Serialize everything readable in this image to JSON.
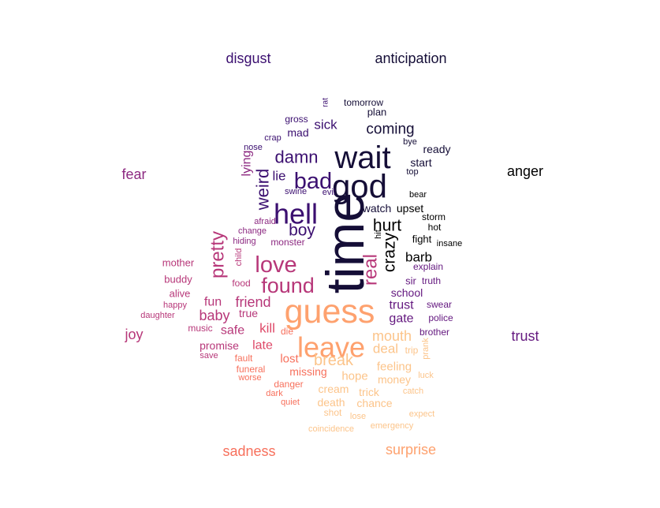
{
  "palette": {
    "black": "#000000",
    "dark_navy": "#150e37",
    "indigo": "#3b0f70",
    "purple": "#651a80",
    "magenta_purple": "#8c2981",
    "magenta": "#b73779",
    "pink": "#de4968",
    "salmon": "#f7705c",
    "peach": "#fea16e",
    "light_peach": "#fcc48a"
  },
  "categories": [
    {
      "label": "disgust",
      "color": "indigo"
    },
    {
      "label": "anticipation",
      "color": "dark_navy"
    },
    {
      "label": "fear",
      "color": "magenta_purple"
    },
    {
      "label": "anger",
      "color": "black"
    },
    {
      "label": "joy",
      "color": "magenta"
    },
    {
      "label": "trust",
      "color": "purple"
    },
    {
      "label": "sadness",
      "color": "salmon"
    },
    {
      "label": "surprise",
      "color": "peach"
    }
  ],
  "words": [
    {
      "text": "time",
      "color": "dark_navy",
      "weight": 10
    },
    {
      "text": "wait",
      "color": "dark_navy",
      "weight": 8.2
    },
    {
      "text": "god",
      "color": "dark_navy",
      "weight": 8.2
    },
    {
      "text": "guess",
      "color": "peach",
      "weight": 8.2
    },
    {
      "text": "leave",
      "color": "peach",
      "weight": 7.6
    },
    {
      "text": "hell",
      "color": "indigo",
      "weight": 6.6
    },
    {
      "text": "bad",
      "color": "indigo",
      "weight": 5.2
    },
    {
      "text": "love",
      "color": "magenta",
      "weight": 5.2
    },
    {
      "text": "found",
      "color": "magenta",
      "weight": 5.2
    },
    {
      "text": "pretty",
      "color": "magenta",
      "weight": 4.8
    },
    {
      "text": "real",
      "color": "magenta",
      "weight": 4.8
    },
    {
      "text": "weird",
      "color": "indigo",
      "weight": 4.4
    },
    {
      "text": "damn",
      "color": "indigo",
      "weight": 4.2
    },
    {
      "text": "crazy",
      "color": "black",
      "weight": 4.2
    },
    {
      "text": "boy",
      "color": "indigo",
      "weight": 4.0
    },
    {
      "text": "hurt",
      "color": "black",
      "weight": 4.0
    },
    {
      "text": "break",
      "color": "light_peach",
      "weight": 3.8
    },
    {
      "text": "coming",
      "color": "dark_navy",
      "weight": 3.4
    },
    {
      "text": "mouth",
      "color": "light_peach",
      "weight": 3.4
    },
    {
      "text": "friend",
      "color": "magenta",
      "weight": 3.4
    },
    {
      "text": "baby",
      "color": "magenta",
      "weight": 3.2
    },
    {
      "text": "kill",
      "color": "pink",
      "weight": 3.2
    },
    {
      "text": "deal",
      "color": "light_peach",
      "weight": 3.2
    },
    {
      "text": "barb",
      "color": "black",
      "weight": 3.2
    },
    {
      "text": "sick",
      "color": "indigo",
      "weight": 3.0
    },
    {
      "text": "lie",
      "color": "indigo",
      "weight": 3.0
    },
    {
      "text": "trust",
      "color": "purple",
      "weight": 3.0
    },
    {
      "text": "gate",
      "color": "purple",
      "weight": 3.0
    },
    {
      "text": "fun",
      "color": "magenta",
      "weight": 2.8
    },
    {
      "text": "lying",
      "color": "magenta_purple",
      "weight": 2.8
    },
    {
      "text": "safe",
      "color": "magenta",
      "weight": 2.8
    },
    {
      "text": "late",
      "color": "pink",
      "weight": 2.8
    },
    {
      "text": "feeling",
      "color": "light_peach",
      "weight": 2.8
    },
    {
      "text": "hope",
      "color": "light_peach",
      "weight": 2.8
    },
    {
      "text": "lost",
      "color": "salmon",
      "weight": 2.8
    },
    {
      "text": "mad",
      "color": "indigo",
      "weight": 2.6
    },
    {
      "text": "start",
      "color": "dark_navy",
      "weight": 2.6
    },
    {
      "text": "ready",
      "color": "dark_navy",
      "weight": 2.6
    },
    {
      "text": "school",
      "color": "purple",
      "weight": 2.6
    },
    {
      "text": "true",
      "color": "magenta",
      "weight": 2.6
    },
    {
      "text": "promise",
      "color": "magenta",
      "weight": 2.6
    },
    {
      "text": "watch",
      "color": "dark_navy",
      "weight": 2.6
    },
    {
      "text": "upset",
      "color": "black",
      "weight": 2.6
    },
    {
      "text": "missing",
      "color": "salmon",
      "weight": 2.5
    },
    {
      "text": "cream",
      "color": "light_peach",
      "weight": 2.5
    },
    {
      "text": "trick",
      "color": "light_peach",
      "weight": 2.5
    },
    {
      "text": "money",
      "color": "light_peach",
      "weight": 2.5
    },
    {
      "text": "death",
      "color": "light_peach",
      "weight": 2.5
    },
    {
      "text": "chance",
      "color": "light_peach",
      "weight": 2.5
    },
    {
      "text": "fight",
      "color": "black",
      "weight": 2.4
    },
    {
      "text": "sir",
      "color": "purple",
      "weight": 2.4
    },
    {
      "text": "plan",
      "color": "dark_navy",
      "weight": 2.3
    },
    {
      "text": "mother",
      "color": "magenta",
      "weight": 2.2
    },
    {
      "text": "buddy",
      "color": "magenta",
      "weight": 2.2
    },
    {
      "text": "alive",
      "color": "magenta",
      "weight": 2.2
    },
    {
      "text": "monster",
      "color": "magenta_purple",
      "weight": 2.2
    },
    {
      "text": "gross",
      "color": "indigo",
      "weight": 2.0
    },
    {
      "text": "tomorrow",
      "color": "dark_navy",
      "weight": 2.0
    },
    {
      "text": "food",
      "color": "magenta",
      "weight": 2.0
    },
    {
      "text": "music",
      "color": "magenta",
      "weight": 2.0
    },
    {
      "text": "hot",
      "color": "black",
      "weight": 2.0
    },
    {
      "text": "storm",
      "color": "black",
      "weight": 2.0
    },
    {
      "text": "swear",
      "color": "purple",
      "weight": 2.0
    },
    {
      "text": "police",
      "color": "purple",
      "weight": 2.0
    },
    {
      "text": "brother",
      "color": "purple",
      "weight": 2.0
    },
    {
      "text": "explain",
      "color": "purple",
      "weight": 2.0
    },
    {
      "text": "truth",
      "color": "purple",
      "weight": 2.0
    },
    {
      "text": "fault",
      "color": "salmon",
      "weight": 2.0
    },
    {
      "text": "funeral",
      "color": "salmon",
      "weight": 2.0
    },
    {
      "text": "danger",
      "color": "salmon",
      "weight": 2.0
    },
    {
      "text": "trip",
      "color": "light_peach",
      "weight": 2.0
    },
    {
      "text": "shot",
      "color": "light_peach",
      "weight": 2.0
    },
    {
      "text": "die",
      "color": "salmon",
      "weight": 2.0
    },
    {
      "text": "happy",
      "color": "magenta",
      "weight": 1.9
    },
    {
      "text": "save",
      "color": "magenta",
      "weight": 1.9
    },
    {
      "text": "daughter",
      "color": "magenta",
      "weight": 1.9
    },
    {
      "text": "swine",
      "color": "indigo",
      "weight": 1.9
    },
    {
      "text": "evil",
      "color": "indigo",
      "weight": 1.9
    },
    {
      "text": "crap",
      "color": "indigo",
      "weight": 1.8
    },
    {
      "text": "nose",
      "color": "indigo",
      "weight": 1.8
    },
    {
      "text": "bye",
      "color": "dark_navy",
      "weight": 1.8
    },
    {
      "text": "top",
      "color": "dark_navy",
      "weight": 1.8
    },
    {
      "text": "bear",
      "color": "black",
      "weight": 1.8
    },
    {
      "text": "insane",
      "color": "black",
      "weight": 1.8
    },
    {
      "text": "hit",
      "color": "black",
      "weight": 1.8
    },
    {
      "text": "afraid",
      "color": "magenta_purple",
      "weight": 1.8
    },
    {
      "text": "change",
      "color": "magenta_purple",
      "weight": 1.8
    },
    {
      "text": "hiding",
      "color": "magenta_purple",
      "weight": 1.8
    },
    {
      "text": "child",
      "color": "magenta",
      "weight": 1.8
    },
    {
      "text": "rat",
      "color": "indigo",
      "weight": 1.7
    },
    {
      "text": "worse",
      "color": "salmon",
      "weight": 1.8
    },
    {
      "text": "dark",
      "color": "salmon",
      "weight": 1.8
    },
    {
      "text": "quiet",
      "color": "salmon",
      "weight": 1.8
    },
    {
      "text": "prank",
      "color": "light_peach",
      "weight": 1.7
    },
    {
      "text": "luck",
      "color": "light_peach",
      "weight": 1.8
    },
    {
      "text": "catch",
      "color": "light_peach",
      "weight": 1.8
    },
    {
      "text": "lose",
      "color": "light_peach",
      "weight": 1.8
    },
    {
      "text": "expect",
      "color": "light_peach",
      "weight": 1.8
    },
    {
      "text": "coincidence",
      "color": "light_peach",
      "weight": 1.8
    },
    {
      "text": "emergency",
      "color": "light_peach",
      "weight": 1.8
    }
  ]
}
